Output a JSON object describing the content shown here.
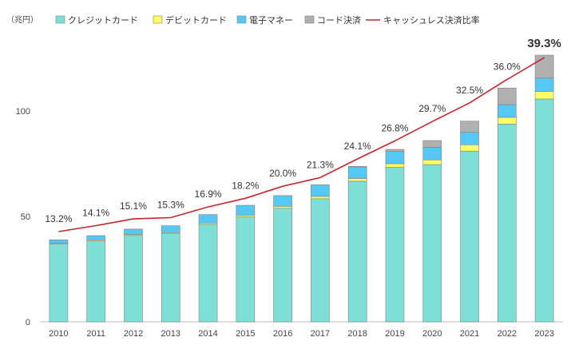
{
  "chart_data": {
    "type": "bar",
    "stacked": true,
    "unit_label": "（兆円）",
    "categories": [
      "2010",
      "2011",
      "2012",
      "2013",
      "2014",
      "2015",
      "2016",
      "2017",
      "2018",
      "2019",
      "2020",
      "2021",
      "2022",
      "2023"
    ],
    "series": [
      {
        "name": "クレジットカード",
        "color": "#7ddfd6",
        "values": [
          36.9,
          38.4,
          41.0,
          41.8,
          46.3,
          49.8,
          53.9,
          58.4,
          66.7,
          73.3,
          74.6,
          81.0,
          93.8,
          105.7
        ]
      },
      {
        "name": "デビットカード",
        "color": "#ffff66",
        "values": [
          0.4,
          0.5,
          0.5,
          0.5,
          0.6,
          0.8,
          0.9,
          1.1,
          1.3,
          1.7,
          2.2,
          3.0,
          3.2,
          3.6
        ]
      },
      {
        "name": "電子マネー",
        "color": "#55c8f5",
        "values": [
          1.6,
          2.0,
          2.5,
          3.3,
          4.0,
          4.7,
          5.1,
          5.5,
          5.5,
          5.8,
          6.0,
          5.9,
          6.0,
          6.3
        ]
      },
      {
        "name": "コード決済",
        "color": "#b0b0b0",
        "values": [
          0,
          0,
          0,
          0,
          0,
          0,
          0,
          0,
          0.2,
          1.0,
          3.2,
          5.3,
          7.9,
          10.9
        ]
      }
    ],
    "line": {
      "name": "キャッシュレス決済比率",
      "color": "#c0262d",
      "values": [
        13.2,
        14.1,
        15.1,
        15.3,
        16.9,
        18.2,
        20.0,
        21.3,
        24.1,
        26.8,
        29.7,
        32.5,
        36.0,
        39.3
      ],
      "labels": [
        "13.2%",
        "14.1%",
        "15.1%",
        "15.3%",
        "16.9%",
        "18.2%",
        "20.0%",
        "21.3%",
        "24.1%",
        "26.8%",
        "29.7%",
        "32.5%",
        "36.0%",
        "39.3%"
      ]
    },
    "y_ticks": [
      0,
      50,
      100
    ],
    "ylim": [
      0,
      135
    ],
    "grid": false,
    "legend_position": "top"
  }
}
